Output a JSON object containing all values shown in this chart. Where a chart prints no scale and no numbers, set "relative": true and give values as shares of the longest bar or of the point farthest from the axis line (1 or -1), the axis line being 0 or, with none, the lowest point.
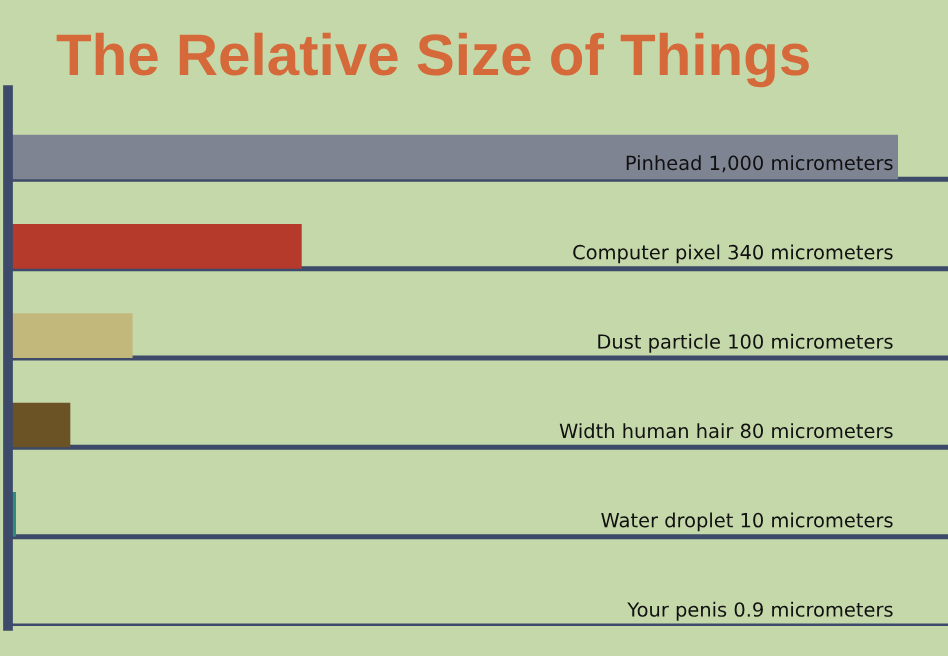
{
  "chart_data": {
    "type": "bar",
    "orientation": "horizontal",
    "relative": true,
    "title": "The Relative Size of Things",
    "categories": [
      "Pinhead 1,000 micrometers",
      "Computer pixel 340 micrometers",
      "Dust particle 100 micrometers",
      "Width human hair 80 micrometers",
      "Water droplet 10 micrometers",
      "Your penis 0.9 micrometers"
    ],
    "values": [
      1,
      0.33,
      0.14,
      0.07,
      0.009,
      0.003
    ],
    "colors": [
      "#7f8493",
      "#b63a2c",
      "#c3b87c",
      "#6b5326",
      "#2f8c80",
      "#5a4636"
    ],
    "ref_lines": [
      {
        "axis": "y",
        "value": "Pinhead 1,000 micrometers",
        "color": "#3d4a6a"
      },
      {
        "axis": "y",
        "value": "Computer pixel 340 micrometers",
        "color": "#3d4a6a"
      },
      {
        "axis": "y",
        "value": "Dust particle 100 micrometers",
        "color": "#3d4a6a"
      },
      {
        "axis": "y",
        "value": "Width human hair 80 micrometers",
        "color": "#3d4a6a"
      },
      {
        "axis": "y",
        "value": "Water droplet 10 micrometers",
        "color": "#3d4a6a"
      },
      {
        "axis": "y",
        "value": "Your penis 0.9 micrometers",
        "color": "#3d4a6a"
      }
    ],
    "legend": false
  }
}
